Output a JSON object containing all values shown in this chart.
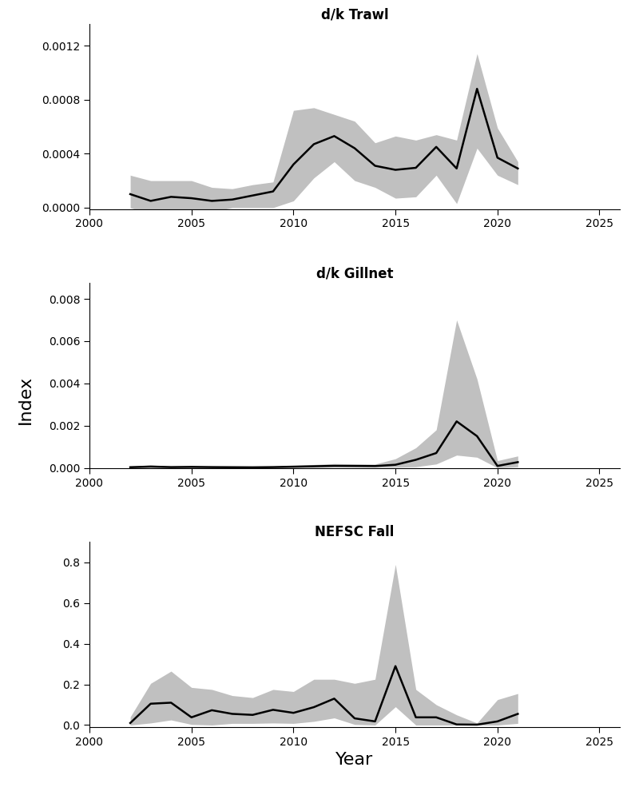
{
  "panel1": {
    "title": "d/k Trawl",
    "years": [
      2002,
      2003,
      2004,
      2005,
      2006,
      2007,
      2008,
      2009,
      2010,
      2011,
      2012,
      2013,
      2014,
      2015,
      2016,
      2017,
      2018,
      2019,
      2020,
      2021
    ],
    "index": [
      0.0001,
      5e-05,
      8e-05,
      7e-05,
      5e-05,
      6e-05,
      9e-05,
      0.00012,
      0.00032,
      0.00047,
      0.00053,
      0.00044,
      0.00031,
      0.00028,
      0.000295,
      0.00045,
      0.00029,
      0.00088,
      0.00037,
      0.00029
    ],
    "lower": [
      0.0,
      -5e-05,
      -5e-05,
      -3e-05,
      -3e-05,
      0.0,
      0.0,
      0.0,
      5e-05,
      0.00022,
      0.00034,
      0.0002,
      0.00015,
      7e-05,
      8e-05,
      0.00024,
      3e-05,
      0.00044,
      0.00024,
      0.00017
    ],
    "upper": [
      0.00024,
      0.0002,
      0.0002,
      0.0002,
      0.00015,
      0.00014,
      0.00017,
      0.00019,
      0.00072,
      0.00074,
      0.00069,
      0.00064,
      0.00048,
      0.00053,
      0.0005,
      0.00054,
      0.0005,
      0.00114,
      0.00059,
      0.00034
    ],
    "ylim": [
      -1e-05,
      0.00136
    ],
    "yticks": [
      0.0,
      0.0004,
      0.0008,
      0.0012
    ],
    "ytick_labels": [
      "0.0000",
      "0.0004",
      "0.0008",
      "0.0012"
    ]
  },
  "panel2": {
    "title": "d/k Gillnet",
    "years": [
      2002,
      2003,
      2004,
      2005,
      2006,
      2007,
      2008,
      2009,
      2010,
      2011,
      2012,
      2013,
      2014,
      2015,
      2016,
      2017,
      2018,
      2019,
      2020,
      2021
    ],
    "index": [
      3e-05,
      6e-05,
      3.5e-05,
      4.5e-05,
      3.5e-05,
      3e-05,
      2.5e-05,
      3.5e-05,
      5.5e-05,
      7.5e-05,
      9.5e-05,
      9e-05,
      8.5e-05,
      0.000145,
      0.00038,
      0.0007,
      0.0022,
      0.0015,
      9e-05,
      0.00027
    ],
    "lower": [
      0.0,
      1.5e-05,
      5e-06,
      1e-05,
      5e-06,
      5e-06,
      5e-06,
      5e-06,
      1e-05,
      2e-05,
      4e-05,
      3.5e-05,
      2.5e-05,
      3e-05,
      5e-05,
      0.00018,
      0.0006,
      0.0005,
      0.0,
      5e-05
    ],
    "upper": [
      8e-05,
      0.00013,
      8e-05,
      9e-05,
      8e-05,
      7e-05,
      6e-05,
      8e-05,
      0.00011,
      0.000155,
      0.0002,
      0.000185,
      0.000175,
      0.00043,
      0.00095,
      0.0018,
      0.007,
      0.0042,
      0.00034,
      0.00056
    ],
    "ylim": [
      -1e-05,
      0.00875
    ],
    "yticks": [
      0.0,
      0.002,
      0.004,
      0.006,
      0.008
    ],
    "ytick_labels": [
      "0.000",
      "0.002",
      "0.004",
      "0.006",
      "0.008"
    ]
  },
  "panel3": {
    "title": "NEFSC Fall",
    "years": [
      2002,
      2003,
      2004,
      2005,
      2006,
      2007,
      2008,
      2009,
      2010,
      2011,
      2012,
      2013,
      2014,
      2015,
      2016,
      2017,
      2018,
      2019,
      2020,
      2021
    ],
    "index": [
      0.01,
      0.105,
      0.11,
      0.038,
      0.073,
      0.055,
      0.05,
      0.075,
      0.06,
      0.088,
      0.13,
      0.033,
      0.018,
      0.29,
      0.038,
      0.038,
      0.003,
      0.002,
      0.018,
      0.055
    ],
    "lower": [
      0.0,
      0.01,
      0.025,
      0.003,
      0.0,
      0.008,
      0.008,
      0.01,
      0.008,
      0.018,
      0.035,
      0.003,
      0.0,
      0.09,
      0.0,
      0.0,
      0.0,
      0.0,
      0.0,
      0.008
    ],
    "upper": [
      0.04,
      0.205,
      0.265,
      0.185,
      0.175,
      0.145,
      0.135,
      0.175,
      0.165,
      0.225,
      0.225,
      0.205,
      0.225,
      0.79,
      0.175,
      0.1,
      0.05,
      0.01,
      0.125,
      0.155
    ],
    "ylim": [
      -0.01,
      0.9
    ],
    "yticks": [
      0.0,
      0.2,
      0.4,
      0.6,
      0.8
    ],
    "ytick_labels": [
      "0.0",
      "0.2",
      "0.4",
      "0.6",
      "0.8"
    ]
  },
  "xlabel": "Year",
  "ylabel": "Index",
  "xlim": [
    2000,
    2026
  ],
  "xticks": [
    2000,
    2005,
    2010,
    2015,
    2020,
    2025
  ],
  "line_color": "#000000",
  "fill_color": "#c0c0c0",
  "bg_color": "#ffffff",
  "line_width": 1.8,
  "fill_alpha": 1.0
}
